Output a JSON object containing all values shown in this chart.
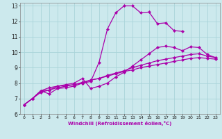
{
  "bg_color": "#cce9ed",
  "grid_color": "#aad4d9",
  "line_color": "#aa00aa",
  "marker": "D",
  "markersize": 2.2,
  "linewidth": 0.9,
  "xlabel": "Windchill (Refroidissement éolien,°C)",
  "xlim": [
    -0.5,
    23.5
  ],
  "ylim": [
    6,
    13.2
  ],
  "xticks": [
    0,
    1,
    2,
    3,
    4,
    5,
    6,
    7,
    8,
    9,
    10,
    11,
    12,
    13,
    14,
    15,
    16,
    17,
    18,
    19,
    20,
    21,
    22,
    23
  ],
  "yticks": [
    6,
    7,
    8,
    9,
    10,
    11,
    12,
    13
  ],
  "lines": [
    {
      "x": [
        0,
        1,
        2,
        3,
        4,
        5,
        6,
        7,
        8,
        9,
        10,
        11,
        12,
        13,
        14,
        15,
        16,
        17,
        18,
        19
      ],
      "y": [
        6.6,
        7.0,
        7.5,
        7.55,
        7.8,
        7.85,
        7.9,
        8.0,
        8.1,
        9.35,
        11.5,
        12.55,
        13.0,
        13.0,
        12.55,
        12.6,
        11.85,
        11.9,
        11.4,
        11.35
      ]
    },
    {
      "x": [
        0,
        1,
        2,
        3,
        4,
        5,
        6,
        7,
        8,
        9,
        10,
        11,
        12,
        13,
        14,
        15,
        16,
        17,
        18,
        19,
        20,
        21,
        22,
        23
      ],
      "y": [
        6.6,
        7.0,
        7.5,
        7.7,
        7.8,
        7.9,
        8.0,
        8.3,
        7.65,
        7.8,
        8.0,
        8.4,
        8.7,
        9.1,
        9.5,
        9.9,
        10.3,
        10.4,
        10.3,
        10.1,
        10.35,
        10.3,
        9.85,
        9.65
      ]
    },
    {
      "x": [
        0,
        1,
        2,
        3,
        4,
        5,
        6,
        7,
        8,
        9,
        10,
        11,
        12,
        13,
        14,
        15,
        16,
        17,
        18,
        19,
        20,
        21,
        22,
        23
      ],
      "y": [
        6.6,
        7.0,
        7.5,
        7.3,
        7.65,
        7.7,
        7.8,
        8.0,
        8.2,
        8.3,
        8.5,
        8.65,
        8.8,
        9.0,
        9.15,
        9.3,
        9.45,
        9.55,
        9.65,
        9.75,
        9.85,
        9.9,
        9.75,
        9.65
      ]
    },
    {
      "x": [
        0,
        1,
        2,
        3,
        4,
        5,
        6,
        7,
        8,
        9,
        10,
        11,
        12,
        13,
        14,
        15,
        16,
        17,
        18,
        19,
        20,
        21,
        22,
        23
      ],
      "y": [
        6.6,
        7.0,
        7.4,
        7.55,
        7.7,
        7.8,
        7.9,
        8.05,
        8.2,
        8.3,
        8.45,
        8.6,
        8.75,
        8.85,
        9.0,
        9.1,
        9.2,
        9.3,
        9.4,
        9.5,
        9.6,
        9.65,
        9.6,
        9.55
      ]
    }
  ]
}
